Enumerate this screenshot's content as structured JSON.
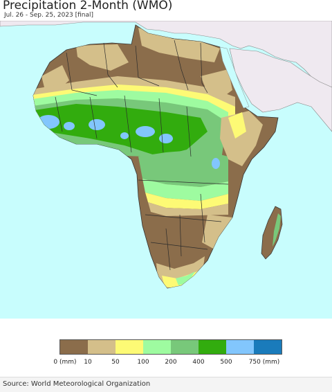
{
  "header": {
    "title": "Precipitation 2-Month (WMO)",
    "subtitle": "Jul. 26 - Sep. 25, 2023 [final]"
  },
  "legend": {
    "colors": [
      "#8b6d4b",
      "#d4bf8a",
      "#fdfa75",
      "#9efba0",
      "#78c87a",
      "#32ac0e",
      "#82c6fd",
      "#1a7bbb"
    ],
    "labels": [
      "0 (mm)",
      "10",
      "50",
      "100",
      "200",
      "400",
      "500",
      "750 (mm)"
    ]
  },
  "footer": {
    "source": "Source: World Meteorological Organization"
  }
}
